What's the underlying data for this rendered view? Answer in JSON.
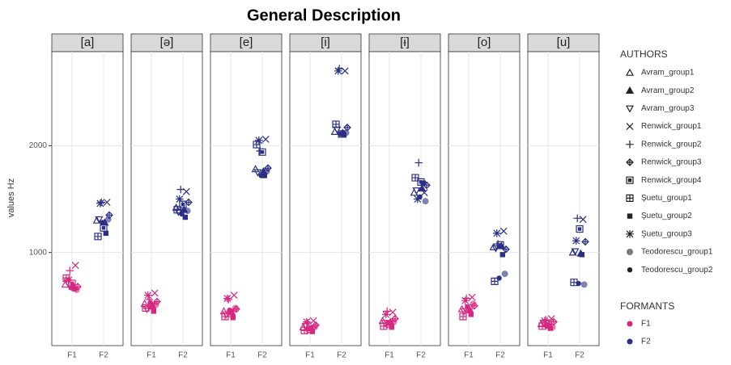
{
  "chart_data": {
    "type": "scatter",
    "title": "General Description",
    "y_label": "values Hz",
    "ylim": [
      128,
      2880
    ],
    "yticks": [
      1000,
      2000
    ],
    "grid": true,
    "facets": [
      "[a]",
      "[ə]",
      "[e]",
      "[i]",
      "[ɨ]",
      "[o]",
      "[u]"
    ],
    "legend_title": "AUTHORS",
    "color_legend_title": "FORMANTS",
    "formants": [
      {
        "name": "F1",
        "color": "#d6287f"
      },
      {
        "name": "F2",
        "color": "#2b2f85"
      }
    ],
    "series": [
      {
        "name": "Avram_group1",
        "shape": "triangle-open",
        "values": [
          [
            700,
            1300
          ],
          [
            520,
            1420
          ],
          [
            450,
            1780
          ],
          [
            300,
            2130
          ],
          [
            360,
            1560
          ],
          [
            470,
            1050
          ],
          [
            330,
            1000
          ]
        ]
      },
      {
        "name": "Avram_group2",
        "shape": "triangle",
        "values": [
          [
            690,
            1280
          ],
          [
            500,
            1400
          ],
          [
            440,
            1760
          ],
          [
            290,
            2120
          ],
          [
            350,
            1600
          ],
          [
            460,
            1060
          ],
          [
            320,
            990
          ]
        ]
      },
      {
        "name": "Avram_group3",
        "shape": "triangle-down-open",
        "values": [
          [
            720,
            1310
          ],
          [
            470,
            1380
          ],
          [
            420,
            1750
          ],
          [
            310,
            2150
          ],
          [
            340,
            1580
          ],
          [
            450,
            1040
          ],
          [
            340,
            1010
          ]
        ]
      },
      {
        "name": "Renwick_group1",
        "shape": "cross",
        "values": [
          [
            880,
            1470
          ],
          [
            620,
            1570
          ],
          [
            600,
            2060
          ],
          [
            360,
            2700
          ],
          [
            440,
            1560
          ],
          [
            580,
            1200
          ],
          [
            380,
            1310
          ]
        ]
      },
      {
        "name": "Renwick_group2",
        "shape": "plus",
        "values": [
          [
            830,
            1470
          ],
          [
            560,
            1590
          ],
          [
            560,
            1950
          ],
          [
            340,
            2720
          ],
          [
            450,
            1840
          ],
          [
            570,
            1080
          ],
          [
            370,
            1320
          ]
        ]
      },
      {
        "name": "Renwick_group3",
        "shape": "diamond-plus",
        "values": [
          [
            680,
            1350
          ],
          [
            540,
            1470
          ],
          [
            470,
            1790
          ],
          [
            320,
            2170
          ],
          [
            380,
            1630
          ],
          [
            500,
            1030
          ],
          [
            350,
            1100
          ]
        ]
      },
      {
        "name": "Renwick_group4",
        "shape": "square-framed",
        "values": [
          [
            710,
            1230
          ],
          [
            500,
            1450
          ],
          [
            430,
            1940
          ],
          [
            280,
            2110
          ],
          [
            330,
            1660
          ],
          [
            480,
            1070
          ],
          [
            330,
            1220
          ]
        ]
      },
      {
        "name": "Şuetu_group1",
        "shape": "square-plus",
        "values": [
          [
            760,
            1150
          ],
          [
            480,
            1400
          ],
          [
            400,
            2010
          ],
          [
            270,
            2200
          ],
          [
            310,
            1700
          ],
          [
            400,
            730
          ],
          [
            310,
            720
          ]
        ]
      },
      {
        "name": "Şuetu_group2",
        "shape": "square",
        "values": [
          [
            660,
            1180
          ],
          [
            450,
            1330
          ],
          [
            390,
            1720
          ],
          [
            260,
            2100
          ],
          [
            300,
            1650
          ],
          [
            420,
            980
          ],
          [
            290,
            980
          ]
        ]
      },
      {
        "name": "Şuetu_group3",
        "shape": "asterisk",
        "values": [
          [
            740,
            1460
          ],
          [
            600,
            1500
          ],
          [
            570,
            2050
          ],
          [
            350,
            2700
          ],
          [
            420,
            1500
          ],
          [
            550,
            1180
          ],
          [
            360,
            1110
          ]
        ]
      },
      {
        "name": "Teodorescu_group1",
        "shape": "circle-large",
        "values": [
          [
            650,
            1310
          ],
          [
            510,
            1390
          ],
          [
            480,
            1760
          ],
          [
            300,
            2120
          ],
          [
            350,
            1480
          ],
          [
            520,
            800
          ],
          [
            300,
            700
          ]
        ]
      },
      {
        "name": "Teodorescu_group2",
        "shape": "circle",
        "values": [
          [
            670,
            1280
          ],
          [
            530,
            1360
          ],
          [
            460,
            1720
          ],
          [
            290,
            2110
          ],
          [
            340,
            1520
          ],
          [
            490,
            760
          ],
          [
            310,
            710
          ]
        ]
      }
    ]
  }
}
